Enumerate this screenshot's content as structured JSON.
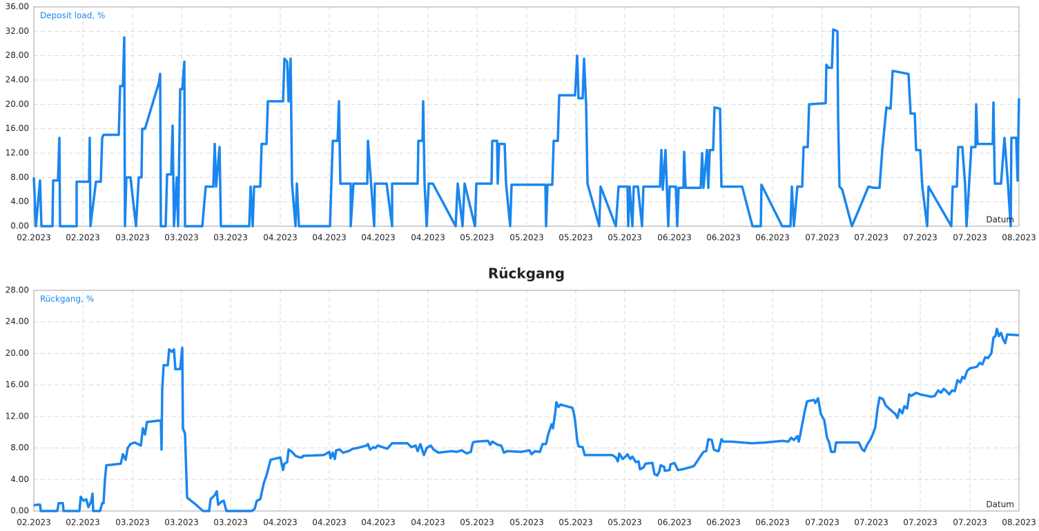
{
  "chart_data": [
    {
      "type": "line",
      "x_label": "Datum",
      "xlim": [
        0,
        1427
      ],
      "xticks": [
        {
          "value": 0,
          "label": "02.2023"
        },
        {
          "value": 71,
          "label": "02.2023"
        },
        {
          "value": 143,
          "label": "03.2023"
        },
        {
          "value": 214,
          "label": "03.2023"
        },
        {
          "value": 285,
          "label": "03.2023"
        },
        {
          "value": 357,
          "label": "04.2023"
        },
        {
          "value": 428,
          "label": "04.2023"
        },
        {
          "value": 499,
          "label": "04.2023"
        },
        {
          "value": 571,
          "label": "04.2023"
        },
        {
          "value": 642,
          "label": "05.2023"
        },
        {
          "value": 714,
          "label": "05.2023"
        },
        {
          "value": 785,
          "label": "05.2023"
        },
        {
          "value": 856,
          "label": "05.2023"
        },
        {
          "value": 928,
          "label": "06.2023"
        },
        {
          "value": 999,
          "label": "06.2023"
        },
        {
          "value": 1070,
          "label": "06.2023"
        },
        {
          "value": 1142,
          "label": "07.2023"
        },
        {
          "value": 1213,
          "label": "07.2023"
        },
        {
          "value": 1284,
          "label": "07.2023"
        },
        {
          "value": 1356,
          "label": "07.2023"
        },
        {
          "value": 1427,
          "label": "08.2023"
        }
      ],
      "ylim": [
        0,
        36
      ],
      "yticks": [
        {
          "value": 0,
          "label": "0.00"
        },
        {
          "value": 4,
          "label": "4.00"
        },
        {
          "value": 8,
          "label": "8.00"
        },
        {
          "value": 12,
          "label": "12.00"
        },
        {
          "value": 16,
          "label": "16.00"
        },
        {
          "value": 20,
          "label": "20.00"
        },
        {
          "value": 24,
          "label": "24.00"
        },
        {
          "value": 28,
          "label": "28.00"
        },
        {
          "value": 32,
          "label": "32.00"
        },
        {
          "value": 36,
          "label": "36.00"
        }
      ],
      "grid": true,
      "x": [
        0,
        3,
        9,
        11,
        27,
        28,
        35,
        37,
        38,
        62,
        62,
        80,
        81,
        82,
        90,
        97,
        99,
        101,
        123,
        125,
        129,
        131,
        132,
        134,
        140,
        148,
        152,
        156,
        157,
        161,
        181,
        183,
        184,
        191,
        193,
        199,
        201,
        203,
        207,
        209,
        212,
        215,
        218,
        219,
        244,
        249,
        260,
        262,
        264,
        269,
        271,
        312,
        314,
        317,
        319,
        328,
        330,
        337,
        339,
        361,
        363,
        367,
        369,
        372,
        374,
        379,
        381,
        384,
        429,
        431,
        433,
        440,
        442,
        444,
        459,
        459,
        463,
        483,
        484,
        493,
        494,
        511,
        519,
        519,
        556,
        557,
        563,
        564,
        566,
        569,
        572,
        578,
        611,
        614,
        621,
        624,
        639,
        641,
        663,
        664,
        671,
        672,
        674,
        682,
        684,
        690,
        692,
        741,
        742,
        744,
        751,
        753,
        759,
        761,
        784,
        787,
        789,
        795,
        797,
        800,
        802,
        819,
        821,
        843,
        847,
        860,
        861,
        863,
        867,
        869,
        875,
        881,
        883,
        907,
        909,
        911,
        915,
        919,
        921,
        930,
        932,
        934,
        941,
        942,
        944,
        966,
        968,
        970,
        975,
        977,
        979,
        984,
        986,
        994,
        996,
        1026,
        1041,
        1053,
        1054,
        1084,
        1096,
        1098,
        1101,
        1106,
        1113,
        1115,
        1121,
        1123,
        1147,
        1148,
        1151,
        1156,
        1158,
        1164,
        1165,
        1167,
        1171,
        1185,
        1209,
        1217,
        1225,
        1229,
        1235,
        1241,
        1244,
        1267,
        1270,
        1276,
        1278,
        1284,
        1287,
        1294,
        1296,
        1329,
        1331,
        1337,
        1339,
        1345,
        1349,
        1351,
        1358,
        1364,
        1365,
        1367,
        1389,
        1390,
        1392,
        1401,
        1406,
        1411,
        1415,
        1416,
        1423,
        1425,
        1427
      ],
      "series": [
        {
          "name": "Deposit load, %",
          "color": "#1a86ee",
          "values": [
            8,
            0,
            7.5,
            0,
            0,
            7.5,
            7.5,
            14.5,
            0,
            0,
            7.3,
            7.3,
            14.5,
            0,
            7.3,
            7.3,
            14.5,
            15,
            15,
            23,
            23,
            31,
            0,
            8,
            8,
            0,
            8,
            8,
            16,
            16,
            23.5,
            25,
            0,
            0,
            8.5,
            8.5,
            16.5,
            0,
            8,
            0,
            22.5,
            22.5,
            27,
            0,
            0,
            6.5,
            6.5,
            13.5,
            6.5,
            13,
            0,
            0,
            6.5,
            0,
            6.5,
            6.5,
            13.5,
            13.5,
            20.5,
            20.5,
            27.5,
            27,
            20.5,
            27.5,
            7,
            0,
            7,
            0,
            0,
            7,
            14,
            14,
            20.5,
            7,
            7,
            0,
            7,
            7,
            14,
            0,
            7,
            7,
            0,
            7,
            7,
            14,
            14,
            20.5,
            7,
            0,
            7,
            7,
            0,
            7,
            0,
            7,
            0,
            7,
            7,
            14,
            14,
            7,
            13.5,
            13.5,
            7,
            0,
            6.8,
            6.8,
            0,
            6.8,
            6.8,
            14,
            14,
            21.5,
            21.5,
            28,
            21,
            21,
            27.5,
            20,
            7,
            0,
            6.5,
            0,
            6.5,
            6.5,
            0,
            6.5,
            0,
            6.5,
            6.5,
            0,
            6.5,
            6.5,
            12.5,
            6,
            12.5,
            0,
            6.5,
            6.5,
            0,
            6.3,
            6.3,
            12.2,
            6.3,
            6.3,
            12,
            6.3,
            12.5,
            6.3,
            12.5,
            12.5,
            19.5,
            19.3,
            6.5,
            6.5,
            0,
            0,
            6.8,
            0,
            0,
            6.5,
            0,
            6.5,
            6.5,
            13,
            13,
            20,
            20.2,
            26.5,
            26,
            26,
            32.3,
            32,
            18,
            6.5,
            6,
            0,
            6.5,
            6.3,
            6.3,
            12.5,
            19.5,
            19.3,
            25.5,
            25,
            18.5,
            18.5,
            12.5,
            12.5,
            6.5,
            0,
            6.5,
            0,
            6.5,
            6.5,
            13,
            13,
            6.8,
            0,
            13,
            13,
            20,
            13.5,
            13.5,
            20.3,
            7,
            7,
            14.5,
            7,
            0,
            14.5,
            14.5,
            7.5,
            21
          ]
        }
      ]
    },
    {
      "type": "line",
      "title": "Rückgang",
      "x_label": "Datum",
      "xlim": [
        0,
        1427
      ],
      "xticks": [
        {
          "value": 0,
          "label": "02.2023"
        },
        {
          "value": 71,
          "label": "02.2023"
        },
        {
          "value": 143,
          "label": "03.2023"
        },
        {
          "value": 214,
          "label": "03.2023"
        },
        {
          "value": 285,
          "label": "03.2023"
        },
        {
          "value": 357,
          "label": "04.2023"
        },
        {
          "value": 428,
          "label": "04.2023"
        },
        {
          "value": 499,
          "label": "04.2023"
        },
        {
          "value": 571,
          "label": "04.2023"
        },
        {
          "value": 642,
          "label": "05.2023"
        },
        {
          "value": 714,
          "label": "05.2023"
        },
        {
          "value": 785,
          "label": "05.2023"
        },
        {
          "value": 856,
          "label": "05.2023"
        },
        {
          "value": 928,
          "label": "06.2023"
        },
        {
          "value": 999,
          "label": "06.2023"
        },
        {
          "value": 1070,
          "label": "06.2023"
        },
        {
          "value": 1142,
          "label": "07.2023"
        },
        {
          "value": 1213,
          "label": "07.2023"
        },
        {
          "value": 1284,
          "label": "07.2023"
        },
        {
          "value": 1356,
          "label": "07.2023"
        },
        {
          "value": 1427,
          "label": "08.2023"
        }
      ],
      "ylim": [
        0,
        28
      ],
      "yticks": [
        {
          "value": 0,
          "label": "0.00"
        },
        {
          "value": 4,
          "label": "4.00"
        },
        {
          "value": 8,
          "label": "8.00"
        },
        {
          "value": 12,
          "label": "12.00"
        },
        {
          "value": 16,
          "label": "16.00"
        },
        {
          "value": 20,
          "label": "20.00"
        },
        {
          "value": 24,
          "label": "24.00"
        },
        {
          "value": 28,
          "label": "28.00"
        }
      ],
      "grid": true,
      "x": [
        0,
        4,
        9,
        10,
        34,
        36,
        42,
        43,
        66,
        68,
        72,
        76,
        79,
        83,
        85,
        86,
        96,
        99,
        101,
        103,
        105,
        126,
        129,
        133,
        136,
        140,
        146,
        155,
        158,
        161,
        164,
        184,
        185,
        186,
        188,
        194,
        196,
        200,
        203,
        205,
        212,
        215,
        216,
        219,
        222,
        235,
        245,
        254,
        256,
        262,
        265,
        267,
        272,
        275,
        279,
        316,
        320,
        323,
        328,
        333,
        337,
        340,
        343,
        357,
        359,
        361,
        363,
        367,
        369,
        374,
        379,
        385,
        389,
        390,
        420,
        428,
        430,
        433,
        436,
        438,
        443,
        448,
        456,
        462,
        469,
        482,
        484,
        487,
        492,
        495,
        498,
        512,
        519,
        541,
        547,
        553,
        556,
        560,
        565,
        569,
        575,
        579,
        586,
        606,
        612,
        620,
        627,
        633,
        636,
        640,
        658,
        661,
        664,
        672,
        677,
        681,
        686,
        706,
        718,
        721,
        726,
        733,
        737,
        742,
        745,
        750,
        752,
        755,
        757,
        760,
        763,
        780,
        782,
        784,
        787,
        789,
        795,
        798,
        820,
        838,
        843,
        846,
        848,
        853,
        857,
        860,
        864,
        867,
        872,
        876,
        878,
        883,
        886,
        896,
        899,
        903,
        906,
        908,
        913,
        914,
        921,
        922,
        928,
        933,
        940,
        949,
        956,
        960,
        966,
        970,
        974,
        977,
        982,
        985,
        990,
        992,
        996,
        999,
        1010,
        1040,
        1060,
        1085,
        1093,
        1097,
        1101,
        1106,
        1108,
        1110,
        1113,
        1117,
        1120,
        1130,
        1132,
        1136,
        1140,
        1145,
        1149,
        1152,
        1155,
        1160,
        1162,
        1195,
        1200,
        1203,
        1207,
        1212,
        1216,
        1219,
        1222,
        1225,
        1230,
        1234,
        1240,
        1248,
        1251,
        1254,
        1258,
        1261,
        1265,
        1268,
        1271,
        1278,
        1284,
        1300,
        1305,
        1310,
        1314,
        1318,
        1322,
        1326,
        1330,
        1334,
        1338,
        1342,
        1345,
        1348,
        1352,
        1356,
        1366,
        1370,
        1374,
        1378,
        1382,
        1387,
        1390,
        1393,
        1395,
        1398,
        1401,
        1404,
        1407,
        1410,
        1427
      ],
      "series": [
        {
          "name": "Rückgang, %",
          "color": "#1a86ee",
          "values": [
            0.7,
            0.8,
            0.8,
            0,
            0,
            1,
            1,
            0,
            0,
            1.8,
            1.3,
            1.5,
            0.5,
            1.2,
            2.2,
            0,
            0,
            1,
            1,
            4,
            5.8,
            6,
            7.2,
            6.5,
            8,
            8.5,
            8.7,
            8.3,
            10.5,
            9.7,
            11.3,
            11.5,
            7.8,
            15.5,
            18.5,
            18.5,
            20.5,
            20.2,
            20.5,
            18,
            18,
            20.7,
            10.5,
            9.8,
            1.7,
            0.8,
            0,
            0,
            1.5,
            2,
            2.5,
            0.8,
            1.2,
            1.3,
            0,
            0,
            0.3,
            1.3,
            1.5,
            3.5,
            4.5,
            5.5,
            6.5,
            6.8,
            6,
            5.2,
            6,
            6.2,
            7.8,
            7.5,
            7,
            6.8,
            6.8,
            7,
            7.1,
            7.5,
            6.7,
            7.4,
            6.6,
            7.7,
            7.8,
            7.4,
            7.6,
            7.9,
            8,
            8.3,
            8.5,
            7.8,
            8.1,
            8,
            8.3,
            7.9,
            8.6,
            8.6,
            8.1,
            8.3,
            7.6,
            8.5,
            7.1,
            8,
            8.3,
            7.8,
            7.4,
            7.6,
            7.5,
            7.7,
            7.3,
            7.5,
            8.7,
            8.8,
            8.9,
            8.4,
            8.8,
            8.4,
            8.3,
            7.4,
            7.6,
            7.5,
            7.7,
            7.2,
            7.6,
            7.5,
            8.5,
            8.5,
            9.7,
            11,
            10.5,
            12.3,
            13.8,
            13.2,
            13.5,
            13.1,
            12.5,
            11.5,
            9,
            8.2,
            8.1,
            7.1,
            7.1,
            7.1,
            6.8,
            6.3,
            7.3,
            6.6,
            6.9,
            7.2,
            6.6,
            6.9,
            6.2,
            6.3,
            5.3,
            5.5,
            6,
            6.1,
            4.7,
            4.5,
            5,
            5.8,
            5.6,
            5.1,
            5.2,
            5.9,
            6.1,
            5.2,
            5.3,
            5.5,
            5.7,
            6.2,
            7,
            7.5,
            7.6,
            9.1,
            9,
            7.8,
            7.6,
            7.6,
            9.1,
            8.8,
            8.8,
            8.6,
            8.7,
            8.9,
            8.8,
            9.3,
            9,
            9.5,
            8.8,
            9.6,
            11,
            12.8,
            13.9,
            14.1,
            13.7,
            14.3,
            12.3,
            11.5,
            9.3,
            8.7,
            7.5,
            7.5,
            8.7,
            8.7,
            7.8,
            7.6,
            8.4,
            9.1,
            9.9,
            10.7,
            12.9,
            14.4,
            14.2,
            13.4,
            12.9,
            12.3,
            11.8,
            12.9,
            12.4,
            13.3,
            13,
            14.8,
            14.6,
            15,
            14.8,
            14.5,
            14.6,
            15.3,
            15,
            15.5,
            15.2,
            14.8,
            15.3,
            15.2,
            16.6,
            16.3,
            17,
            16.8,
            17.8,
            18.1,
            18.3,
            18.8,
            18.6,
            19.5,
            19.4,
            20,
            22,
            22.2,
            23.1,
            22.2,
            22.6,
            21.8,
            21.3,
            22.4,
            22.3
          ]
        }
      ]
    }
  ]
}
